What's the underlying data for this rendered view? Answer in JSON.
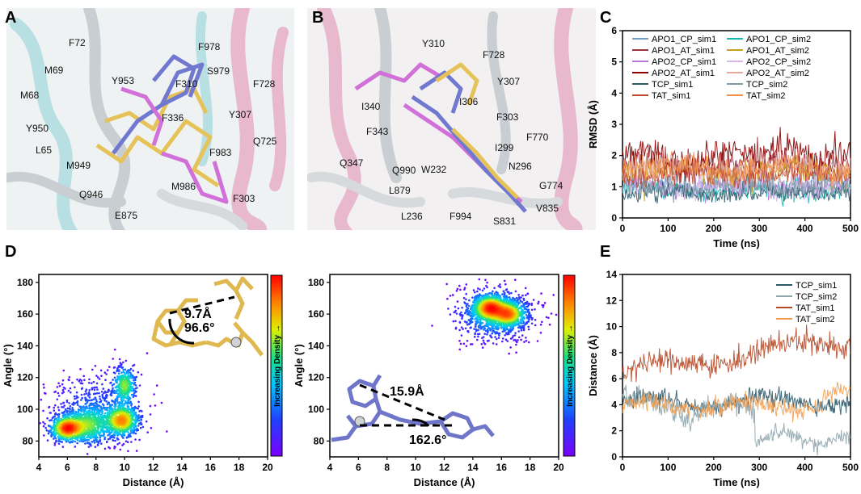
{
  "panel_letters": [
    "A",
    "B",
    "C",
    "D",
    "E"
  ],
  "panelA": {
    "residues": [
      "F72",
      "M69",
      "M68",
      "Y950",
      "L65",
      "M949",
      "Q946",
      "E875",
      "Y953",
      "F978",
      "S979",
      "F310",
      "F728",
      "F336",
      "Y307",
      "Q725",
      "F983",
      "M986",
      "F303"
    ]
  },
  "panelB": {
    "residues": [
      "Y310",
      "F728",
      "Y307",
      "I340",
      "I306",
      "F343",
      "F303",
      "F770",
      "I299",
      "Q347",
      "Q990",
      "W232",
      "N296",
      "L879",
      "L236",
      "F994",
      "S831",
      "G774",
      "V835"
    ]
  },
  "panelD": {
    "colorbar_label": "Increasing Density →",
    "left_annotations": {
      "distance": "9.7Å",
      "angle": "96.6°"
    },
    "right_annotations": {
      "distance": "15.9Å",
      "angle": "162.6°"
    }
  },
  "chart_data": [
    {
      "type": "line",
      "panel": "C",
      "xlabel": "Time (ns)",
      "ylabel": "RMSD (Å)",
      "xlim": [
        0,
        500
      ],
      "ylim": [
        0,
        6
      ],
      "xticks": [
        0,
        100,
        200,
        300,
        400,
        500
      ],
      "yticks": [
        0,
        1,
        2,
        3,
        4,
        5,
        6
      ],
      "legend_columns": 2,
      "series": [
        {
          "name": "APO1_CP_sim1",
          "color": "#6f9ed0",
          "mean": 1.1,
          "noise": 0.2
        },
        {
          "name": "APO1_CP_sim2",
          "color": "#18b8b0",
          "mean": 0.9,
          "noise": 0.15
        },
        {
          "name": "APO1_AT_sim1",
          "color": "#a0303c",
          "mean": 1.7,
          "noise": 0.25
        },
        {
          "name": "APO1_AT_sim2",
          "color": "#c8a020",
          "mean": 1.5,
          "noise": 0.22
        },
        {
          "name": "APO2_CP_sim1",
          "color": "#b878d8",
          "mean": 1.0,
          "noise": 0.18
        },
        {
          "name": "APO2_CP_sim2",
          "color": "#d8b8ec",
          "mean": 1.0,
          "noise": 0.18
        },
        {
          "name": "APO2_AT_sim1",
          "color": "#8b0000",
          "mean": 1.95,
          "noise": 0.25
        },
        {
          "name": "APO2_AT_sim2",
          "color": "#e8a8a0",
          "mean": 1.55,
          "noise": 0.22
        },
        {
          "name": "TCP_sim1",
          "color": "#2f5a6a",
          "mean": 0.8,
          "noise": 0.14
        },
        {
          "name": "TCP_sim2",
          "color": "#7f9aa5",
          "mean": 1.0,
          "noise": 0.16
        },
        {
          "name": "TAT_sim1",
          "color": "#c04a30",
          "mean": 1.4,
          "noise": 0.2
        },
        {
          "name": "TAT_sim2",
          "color": "#f0904a",
          "mean": 1.6,
          "noise": 0.22
        }
      ]
    },
    {
      "type": "scatter",
      "panel": "D-left",
      "xlabel": "Distance (Å)",
      "ylabel": "Angle (°)",
      "xlim": [
        4,
        20
      ],
      "ylim": [
        70,
        185
      ],
      "xticks": [
        4,
        6,
        8,
        10,
        12,
        14,
        16,
        18,
        20
      ],
      "yticks": [
        80,
        100,
        120,
        140,
        160,
        180
      ],
      "clusters": [
        {
          "x": 6.0,
          "y": 88,
          "sx": 0.6,
          "sy": 4,
          "n": 700
        },
        {
          "x": 7.5,
          "y": 90,
          "sx": 0.8,
          "sy": 6,
          "n": 600
        },
        {
          "x": 9.8,
          "y": 93,
          "sx": 0.6,
          "sy": 5,
          "n": 700
        },
        {
          "x": 10.0,
          "y": 115,
          "sx": 0.4,
          "sy": 6,
          "n": 350
        },
        {
          "x": 8.0,
          "y": 100,
          "sx": 1.6,
          "sy": 12,
          "n": 500
        }
      ]
    },
    {
      "type": "scatter",
      "panel": "D-right",
      "xlabel": "Distance (Å)",
      "ylabel": "Angle (°)",
      "xlim": [
        4,
        20
      ],
      "ylim": [
        70,
        185
      ],
      "xticks": [
        4,
        6,
        8,
        10,
        12,
        14,
        16,
        18,
        20
      ],
      "yticks": [
        80,
        100,
        120,
        140,
        160,
        180
      ],
      "clusters": [
        {
          "x": 15.2,
          "y": 164,
          "sx": 0.6,
          "sy": 4,
          "n": 700
        },
        {
          "x": 16.5,
          "y": 160,
          "sx": 0.6,
          "sy": 4,
          "n": 600
        },
        {
          "x": 15.5,
          "y": 160,
          "sx": 1.3,
          "sy": 8,
          "n": 900
        }
      ]
    },
    {
      "type": "line",
      "panel": "E",
      "xlabel": "Time (ns)",
      "ylabel": "Distance (Å)",
      "xlim": [
        0,
        500
      ],
      "ylim": [
        0,
        14
      ],
      "xticks": [
        0,
        100,
        200,
        300,
        400,
        500
      ],
      "yticks": [
        0,
        2,
        4,
        6,
        8,
        10,
        12,
        14
      ],
      "series": [
        {
          "name": "TCP_sim1",
          "color": "#2f5a6a"
        },
        {
          "name": "TCP_sim2",
          "color": "#8fa6ad"
        },
        {
          "name": "TAT_sim1",
          "color": "#b84a28"
        },
        {
          "name": "TAT_sim2",
          "color": "#f5a050"
        }
      ]
    }
  ]
}
